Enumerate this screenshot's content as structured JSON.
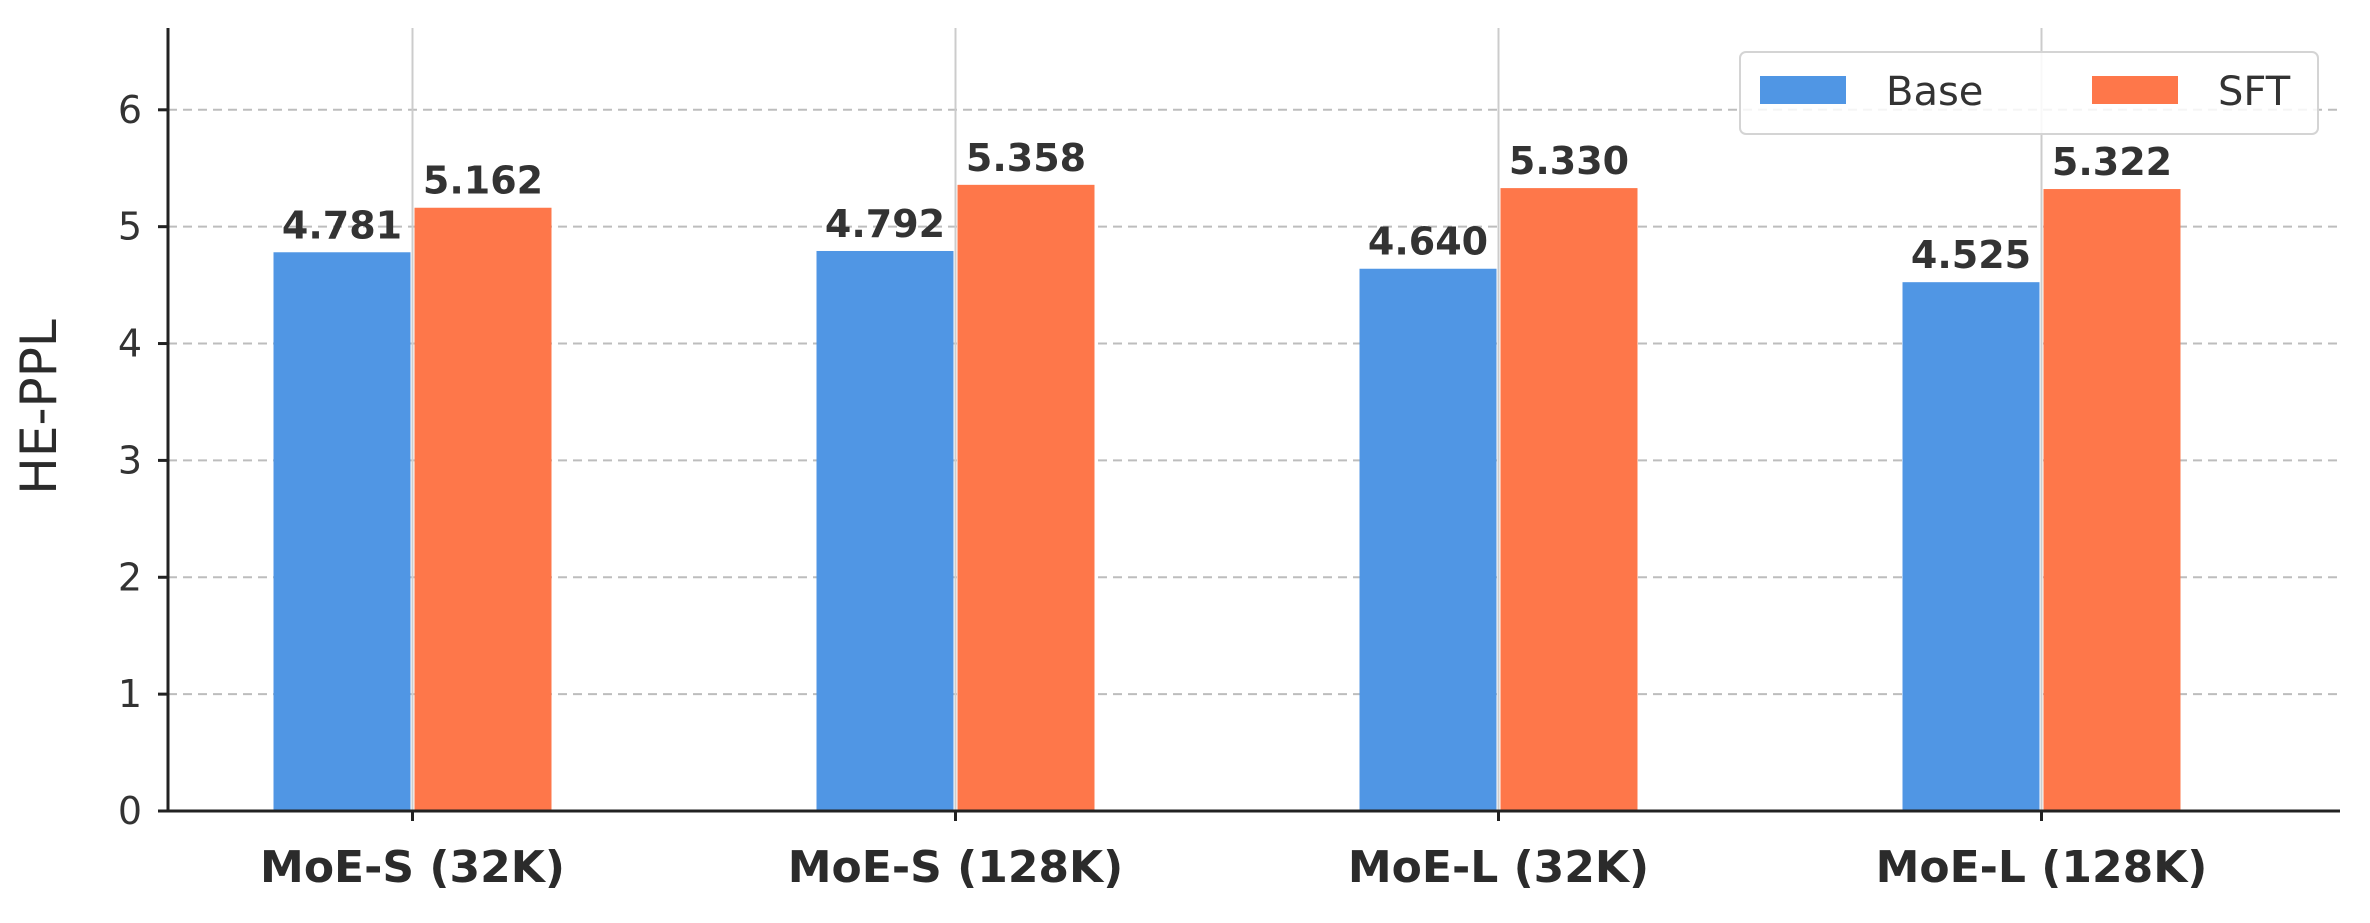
{
  "chart_data": {
    "type": "bar",
    "title": "",
    "xlabel": "",
    "ylabel": "HE-PPL",
    "categories": [
      "MoE-S (32K)",
      "MoE-S (128K)",
      "MoE-L (32K)",
      "MoE-L (128K)"
    ],
    "series": [
      {
        "name": "Base",
        "color": "#5096e4",
        "values": [
          4.781,
          4.792,
          4.64,
          4.525
        ],
        "labels": [
          "4.781",
          "4.792",
          "4.640",
          "4.525"
        ]
      },
      {
        "name": "SFT",
        "color": "#fe774a",
        "values": [
          5.162,
          5.358,
          5.33,
          5.322
        ],
        "labels": [
          "5.162",
          "5.358",
          "5.330",
          "5.322"
        ]
      }
    ],
    "ylim": [
      0,
      6.7
    ],
    "yticks": [
      0,
      1,
      2,
      3,
      4,
      5,
      6
    ],
    "ytick_labels": [
      "0",
      "1",
      "2",
      "3",
      "4",
      "5",
      "6"
    ],
    "grid": {
      "y": "dashed",
      "x": "solid"
    },
    "legend": {
      "position": "top-right",
      "columns": 2
    }
  }
}
